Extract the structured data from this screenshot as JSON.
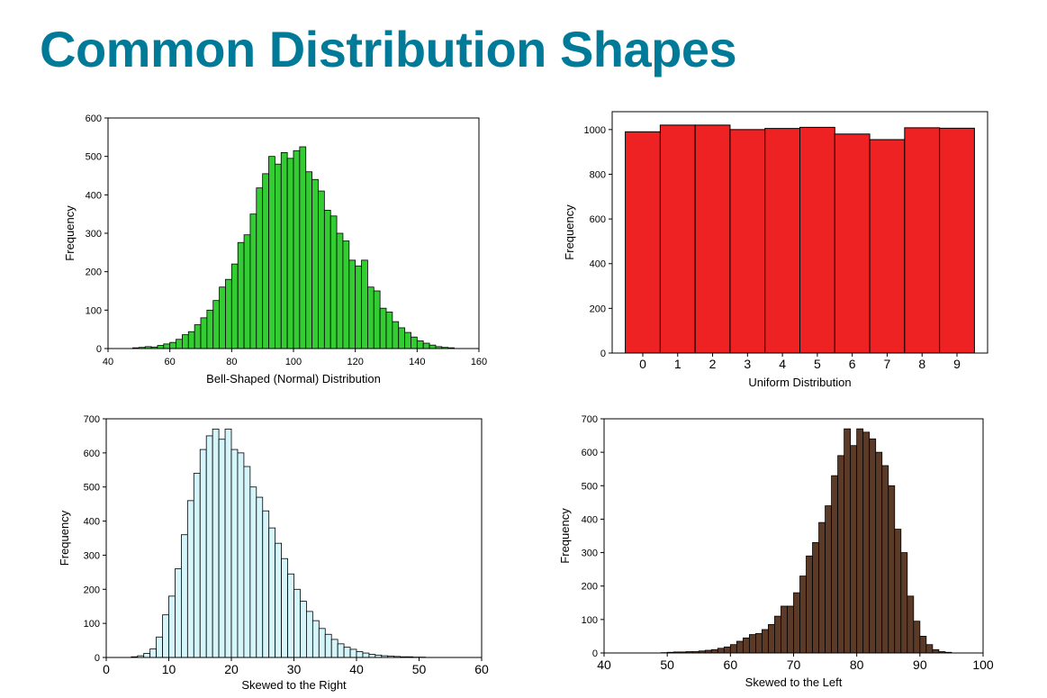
{
  "title": "Common Distribution Shapes",
  "chart_data": [
    {
      "type": "bar",
      "id": "normal",
      "xlabel": "Bell-Shaped (Normal) Distribution",
      "ylabel": "Frequency",
      "xlim": [
        40,
        160
      ],
      "ylim": [
        0,
        600
      ],
      "xticks": [
        40,
        60,
        80,
        100,
        120,
        140,
        160
      ],
      "yticks": [
        0,
        100,
        200,
        300,
        400,
        500,
        600
      ],
      "bin_start": 48,
      "bin_width": 2,
      "values": [
        2,
        3,
        5,
        4,
        8,
        12,
        16,
        24,
        36,
        44,
        62,
        80,
        100,
        125,
        160,
        180,
        220,
        276,
        296,
        350,
        418,
        455,
        500,
        480,
        510,
        495,
        515,
        525,
        460,
        440,
        410,
        360,
        345,
        300,
        280,
        230,
        215,
        230,
        160,
        150,
        105,
        95,
        70,
        54,
        42,
        30,
        20,
        14,
        9,
        5,
        3,
        2
      ],
      "bar_color": "#33cc33",
      "grid": false
    },
    {
      "type": "bar",
      "id": "uniform",
      "xlabel": "Uniform Distribution",
      "ylabel": "Frequency",
      "categories": [
        "0",
        "1",
        "2",
        "3",
        "4",
        "5",
        "6",
        "7",
        "8",
        "9"
      ],
      "values": [
        990,
        1020,
        1020,
        1000,
        1005,
        1010,
        980,
        955,
        1008,
        1006
      ],
      "ylim": [
        0,
        1080
      ],
      "yticks": [
        0,
        200,
        400,
        600,
        800,
        1000
      ],
      "bar_color": "#ee2222",
      "grid": false
    },
    {
      "type": "bar",
      "id": "right-skewed",
      "xlabel": "Skewed to the Right",
      "ylabel": "Frequency",
      "xlim": [
        0,
        60
      ],
      "ylim": [
        0,
        700
      ],
      "xticks": [
        0,
        10,
        20,
        30,
        40,
        50,
        60
      ],
      "yticks": [
        0,
        100,
        200,
        300,
        400,
        500,
        600,
        700
      ],
      "bin_start": 4,
      "bin_width": 1,
      "values": [
        2,
        5,
        12,
        25,
        60,
        125,
        180,
        260,
        360,
        460,
        540,
        610,
        650,
        670,
        640,
        670,
        610,
        600,
        560,
        500,
        470,
        430,
        380,
        335,
        290,
        245,
        200,
        165,
        135,
        108,
        85,
        68,
        53,
        40,
        30,
        24,
        17,
        13,
        9,
        7,
        5,
        4,
        3,
        2,
        2,
        1,
        1
      ],
      "bar_color": "#d4f5fa",
      "grid": false
    },
    {
      "type": "bar",
      "id": "left-skewed",
      "xlabel": "Skewed to the Left",
      "ylabel": "Frequency",
      "xlim": [
        40,
        100
      ],
      "ylim": [
        0,
        700
      ],
      "xticks": [
        40,
        50,
        60,
        70,
        80,
        90,
        100
      ],
      "yticks": [
        0,
        100,
        200,
        300,
        400,
        500,
        600,
        700
      ],
      "bin_start": 49,
      "bin_width": 1,
      "values": [
        1,
        2,
        3,
        3,
        4,
        4,
        6,
        8,
        10,
        14,
        18,
        25,
        35,
        45,
        55,
        58,
        70,
        85,
        110,
        140,
        140,
        180,
        230,
        290,
        330,
        390,
        440,
        530,
        590,
        670,
        620,
        670,
        660,
        640,
        600,
        560,
        500,
        370,
        300,
        170,
        95,
        50,
        25,
        10,
        4,
        2
      ],
      "bar_color": "#5c3a28",
      "grid": false
    }
  ]
}
